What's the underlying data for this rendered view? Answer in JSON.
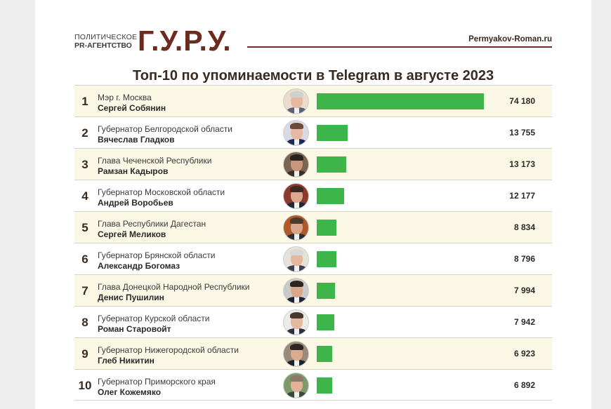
{
  "header": {
    "agency_line1": "ПОЛИТИЧЕСКОЕ",
    "agency_line2": "PR-АГЕНТСТВО",
    "logo": "Г.У.Р.У.",
    "site": "Permyakov-Roman.ru"
  },
  "colors": {
    "bar": "#3db54a",
    "accent": "#6b2c1f",
    "odd_row": "#fcf8e6"
  },
  "chart_data": {
    "type": "bar",
    "orientation": "horizontal",
    "title": "Топ-10 по упоминаемости в Telegram в августе 2023",
    "categories": [
      "Сергей Собянин",
      "Вячеслав Гладков",
      "Рамзан Кадыров",
      "Андрей Воробьев",
      "Сергей Меликов",
      "Александр Богомаз",
      "Денис Пушилин",
      "Роман Старовойт",
      "Глеб Никитин",
      "Олег Кожемяко"
    ],
    "values": [
      74180,
      13755,
      13173,
      12177,
      8834,
      8796,
      7994,
      7942,
      6923,
      6892
    ],
    "xlim": [
      0,
      74180
    ],
    "grid": false,
    "rows": [
      {
        "rank": "1",
        "position": "Мэр г. Москва",
        "name": "Сергей Собянин",
        "value": 74180,
        "label": "74 180",
        "avatar": {
          "skin": "#e6b9a0",
          "hair": "#cfcfcf",
          "suit": "#5a6270",
          "bg": "#e8dccb"
        }
      },
      {
        "rank": "2",
        "position": "Губернатор Белгородской области",
        "name": "Вячеслав Гладков",
        "value": 13755,
        "label": "13 755",
        "avatar": {
          "skin": "#e8b9a2",
          "hair": "#6b4a3a",
          "suit": "#1e2a52",
          "bg": "#d9d9e6"
        }
      },
      {
        "rank": "3",
        "position": "Глава Чеченской Республики",
        "name": "Рамзан Кадыров",
        "value": 13173,
        "label": "13 173",
        "avatar": {
          "skin": "#c9977a",
          "hair": "#2a2420",
          "suit": "#3b2f26",
          "bg": "#7a6552"
        }
      },
      {
        "rank": "4",
        "position": "Губернатор Московской области",
        "name": "Андрей Воробьев",
        "value": 12177,
        "label": "12 177",
        "avatar": {
          "skin": "#dca98f",
          "hair": "#3a2a22",
          "suit": "#222831",
          "bg": "#8c3a2e"
        }
      },
      {
        "rank": "5",
        "position": "Глава Республики Дагестан",
        "name": "Сергей Меликов",
        "value": 8834,
        "label": "8 834",
        "avatar": {
          "skin": "#d8a68a",
          "hair": "#4a3a30",
          "suit": "#2a2f3a",
          "bg": "#b05a2a"
        }
      },
      {
        "rank": "6",
        "position": "Губернатор Брянской области",
        "name": "Александр Богомаз",
        "value": 8796,
        "label": "8 796",
        "avatar": {
          "skin": "#e4b79f",
          "hair": "#d8d8d8",
          "suit": "#3c4250",
          "bg": "#e4e2da"
        }
      },
      {
        "rank": "7",
        "position": "Глава Донецкой Народной Республики",
        "name": "Денис Пушилин",
        "value": 7994,
        "label": "7 994",
        "avatar": {
          "skin": "#dba78c",
          "hair": "#2e2520",
          "suit": "#1f2330",
          "bg": "#c9c9c9"
        }
      },
      {
        "rank": "8",
        "position": "Губернатор Курской области",
        "name": "Роман Старовойт",
        "value": 7942,
        "label": "7 942",
        "avatar": {
          "skin": "#e6b8a0",
          "hair": "#4a3830",
          "suit": "#2b3040",
          "bg": "#ecebe7"
        }
      },
      {
        "rank": "9",
        "position": "Губернатор Нижегородской области",
        "name": "Глеб Никитин",
        "value": 6923,
        "label": "6 923",
        "avatar": {
          "skin": "#dcaa8e",
          "hair": "#2e2622",
          "suit": "#1d222c",
          "bg": "#9a8a7a"
        }
      },
      {
        "rank": "10",
        "position": "Губернатор Приморского края",
        "name": "Олег Кожемяко",
        "value": 6892,
        "label": "6 892",
        "avatar": {
          "skin": "#e2b29a",
          "hair": "#8a7a6a",
          "suit": "#3a4a3a",
          "bg": "#7f9a6a"
        }
      }
    ]
  }
}
